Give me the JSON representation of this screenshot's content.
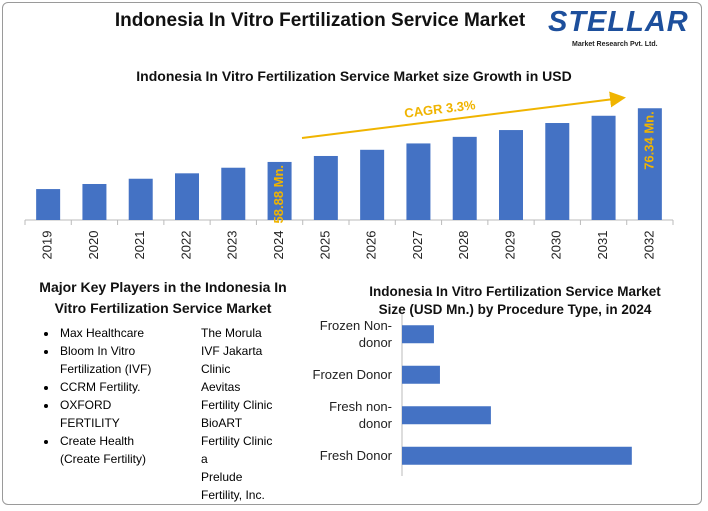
{
  "header": {
    "title": "Indonesia In Vitro Fertilization Service Market"
  },
  "logo": {
    "name": "STELLAR",
    "subtitle": "Market Research Pvt. Ltd."
  },
  "key_players": {
    "title": "Major Key Players in the Indonesia In Vitro Fertilization Service Market",
    "left": [
      "Max Healthcare",
      "Bloom In Vitro Fertilization (IVF)",
      "CCRM Fertility.",
      "OXFORD FERTILITY",
      "Create Health (Create Fertility)"
    ],
    "right": [
      "The Morula IVF Jakarta Clinic",
      "Aevitas Fertility Clinic",
      "BioART Fertility Clinic a",
      "Prelude Fertility, Inc."
    ]
  },
  "chart_data": [
    {
      "type": "bar",
      "title": "Indonesia In Vitro Fertilization Service Market size Growth in USD",
      "categories": [
        "2019",
        "2020",
        "2021",
        "2022",
        "2023",
        "2024",
        "2025",
        "2026",
        "2027",
        "2028",
        "2029",
        "2030",
        "2031",
        "2032"
      ],
      "values": [
        50.06,
        51.71,
        53.42,
        55.18,
        57.0,
        58.88,
        60.82,
        62.83,
        64.9,
        67.04,
        69.25,
        71.54,
        73.9,
        76.34
      ],
      "value_labels": [
        null,
        null,
        null,
        null,
        null,
        "58.88 Mn.",
        null,
        null,
        null,
        null,
        null,
        null,
        null,
        "76.34 Mn."
      ],
      "color": "#4472c4",
      "label_color": "#f0b400",
      "ylim": [
        40,
        80
      ],
      "annotation": "CAGR 3.3%"
    },
    {
      "type": "hbar",
      "title": "Indonesia In Vitro Fertilization Service Market Size (USD Mn.) by Procedure Type, in 2024",
      "categories": [
        "Frozen Non-donor",
        "Frozen Donor",
        "Fresh non-donor",
        "Fresh Donor"
      ],
      "values": [
        4.84,
        5.75,
        13.47,
        34.82
      ],
      "color": "#4472c4",
      "xlim": [
        0,
        40
      ]
    }
  ]
}
